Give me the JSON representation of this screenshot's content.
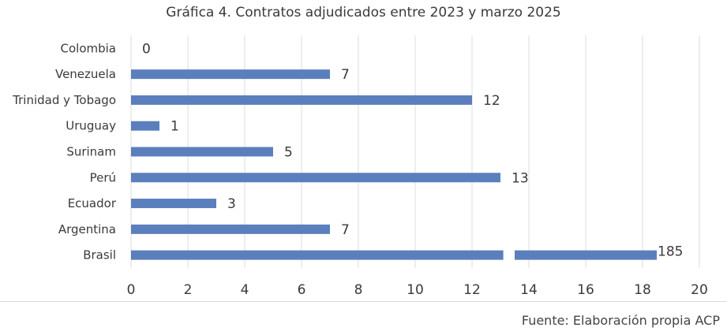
{
  "chart_data": {
    "type": "bar",
    "orientation": "horizontal",
    "title": "Gráfica 4. Contratos adjudicados entre 2023 y marzo 2025",
    "categories": [
      "Colombia",
      "Venezuela",
      "Trinidad y Tobago",
      "Uruguay",
      "Surinam",
      "Perú",
      "Ecuador",
      "Argentina",
      "Brasil"
    ],
    "values": [
      0,
      7,
      12,
      1,
      5,
      13,
      3,
      7,
      185
    ],
    "data_labels": [
      "0",
      "7",
      "12",
      "1",
      "5",
      "13",
      "3",
      "7",
      "185"
    ],
    "xlim": [
      0,
      20
    ],
    "xticks": [
      "0",
      "2",
      "4",
      "6",
      "8",
      "10",
      "12",
      "14",
      "16",
      "18",
      "20"
    ],
    "xlabel": "",
    "ylabel": "",
    "grid": "vertical gridlines on",
    "axis_break": {
      "category": "Brasil",
      "note": "bar truncated with a break gap"
    },
    "bar_color": "#5b7fbd",
    "grid_color": "#dcdcdc"
  },
  "source": "Fuente: Elaboración propia ACP"
}
